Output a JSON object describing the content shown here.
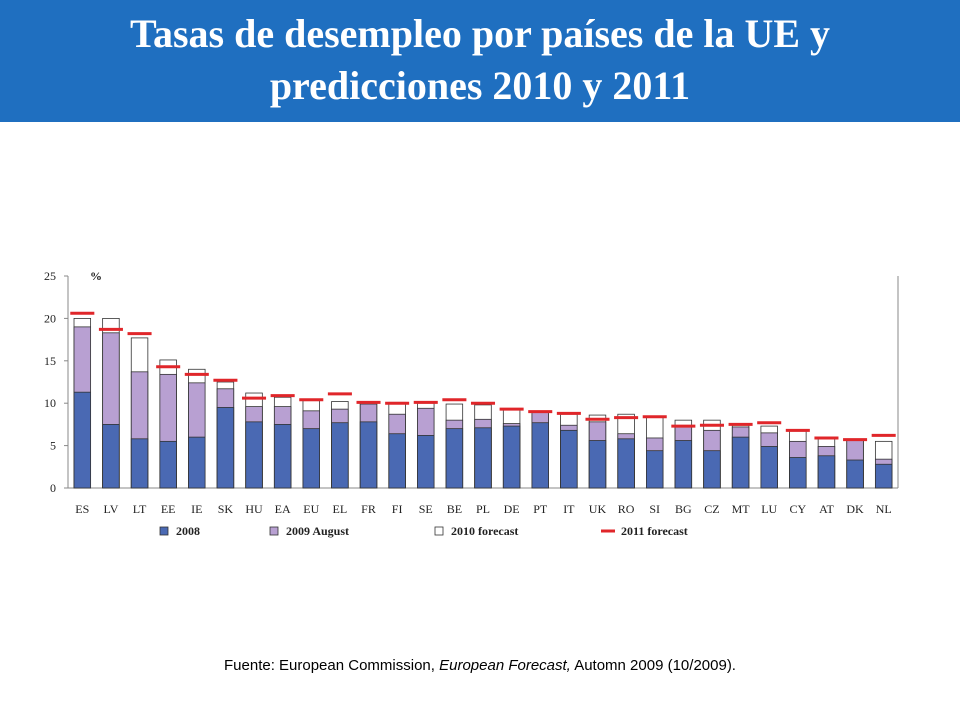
{
  "header": {
    "title_line1": "Tasas de desempleo por países de la UE y",
    "title_line2": "predicciones 2010 y 2011",
    "background_color": "#1f6fc0"
  },
  "source": {
    "prefix": "Fuente: European Commission, ",
    "italic": "European Forecast,",
    "suffix": " Automn 2009 (10/2009)."
  },
  "chart_data": {
    "type": "bar",
    "ylabel": "%",
    "ylim": [
      0,
      25
    ],
    "yticks": [
      0,
      5,
      10,
      15,
      20,
      25
    ],
    "grid": false,
    "legend_position": "bottom",
    "categories": [
      "ES",
      "LV",
      "LT",
      "EE",
      "IE",
      "SK",
      "HU",
      "EA",
      "EU",
      "EL",
      "FR",
      "FI",
      "SE",
      "BE",
      "PL",
      "DE",
      "PT",
      "IT",
      "UK",
      "RO",
      "SI",
      "BG",
      "CZ",
      "MT",
      "LU",
      "CY",
      "AT",
      "DK",
      "NL"
    ],
    "series": [
      {
        "name": "2008",
        "color": "#4a69b3",
        "values": [
          11.3,
          7.5,
          5.8,
          5.5,
          6.0,
          9.5,
          7.8,
          7.5,
          7.0,
          7.7,
          7.8,
          6.4,
          6.2,
          7.0,
          7.1,
          7.3,
          7.7,
          6.8,
          5.6,
          5.8,
          4.4,
          5.6,
          4.4,
          6.0,
          4.9,
          3.6,
          3.8,
          3.3,
          2.8
        ]
      },
      {
        "name": "2009 August",
        "color": "#b8a0d2",
        "values": [
          19.0,
          18.3,
          13.7,
          13.4,
          12.4,
          11.7,
          9.6,
          9.6,
          9.1,
          9.3,
          9.9,
          8.7,
          9.4,
          8.0,
          8.1,
          7.6,
          9.0,
          7.4,
          7.8,
          6.4,
          5.9,
          7.3,
          6.8,
          7.2,
          6.5,
          5.5,
          4.9,
          5.6,
          3.4
        ]
      },
      {
        "name": "2010 forecast",
        "color": "#ffffff",
        "values": [
          20.0,
          20.0,
          17.7,
          15.1,
          14.0,
          12.5,
          11.2,
          10.7,
          10.3,
          10.2,
          10.0,
          10.1,
          10.0,
          9.9,
          9.8,
          9.2,
          8.7,
          8.7,
          8.6,
          8.7,
          8.4,
          8.0,
          8.0,
          7.4,
          7.3,
          6.7,
          5.9,
          5.6,
          5.5
        ]
      },
      {
        "name": "2011 forecast",
        "color": "#e0262a",
        "values": [
          20.6,
          18.7,
          18.2,
          14.3,
          13.4,
          12.7,
          10.6,
          10.9,
          10.4,
          11.1,
          10.1,
          10.0,
          10.1,
          10.4,
          10.0,
          9.3,
          9.0,
          8.8,
          8.1,
          8.3,
          8.4,
          7.3,
          7.4,
          7.5,
          7.7,
          6.8,
          5.9,
          5.7,
          6.2
        ]
      }
    ]
  }
}
